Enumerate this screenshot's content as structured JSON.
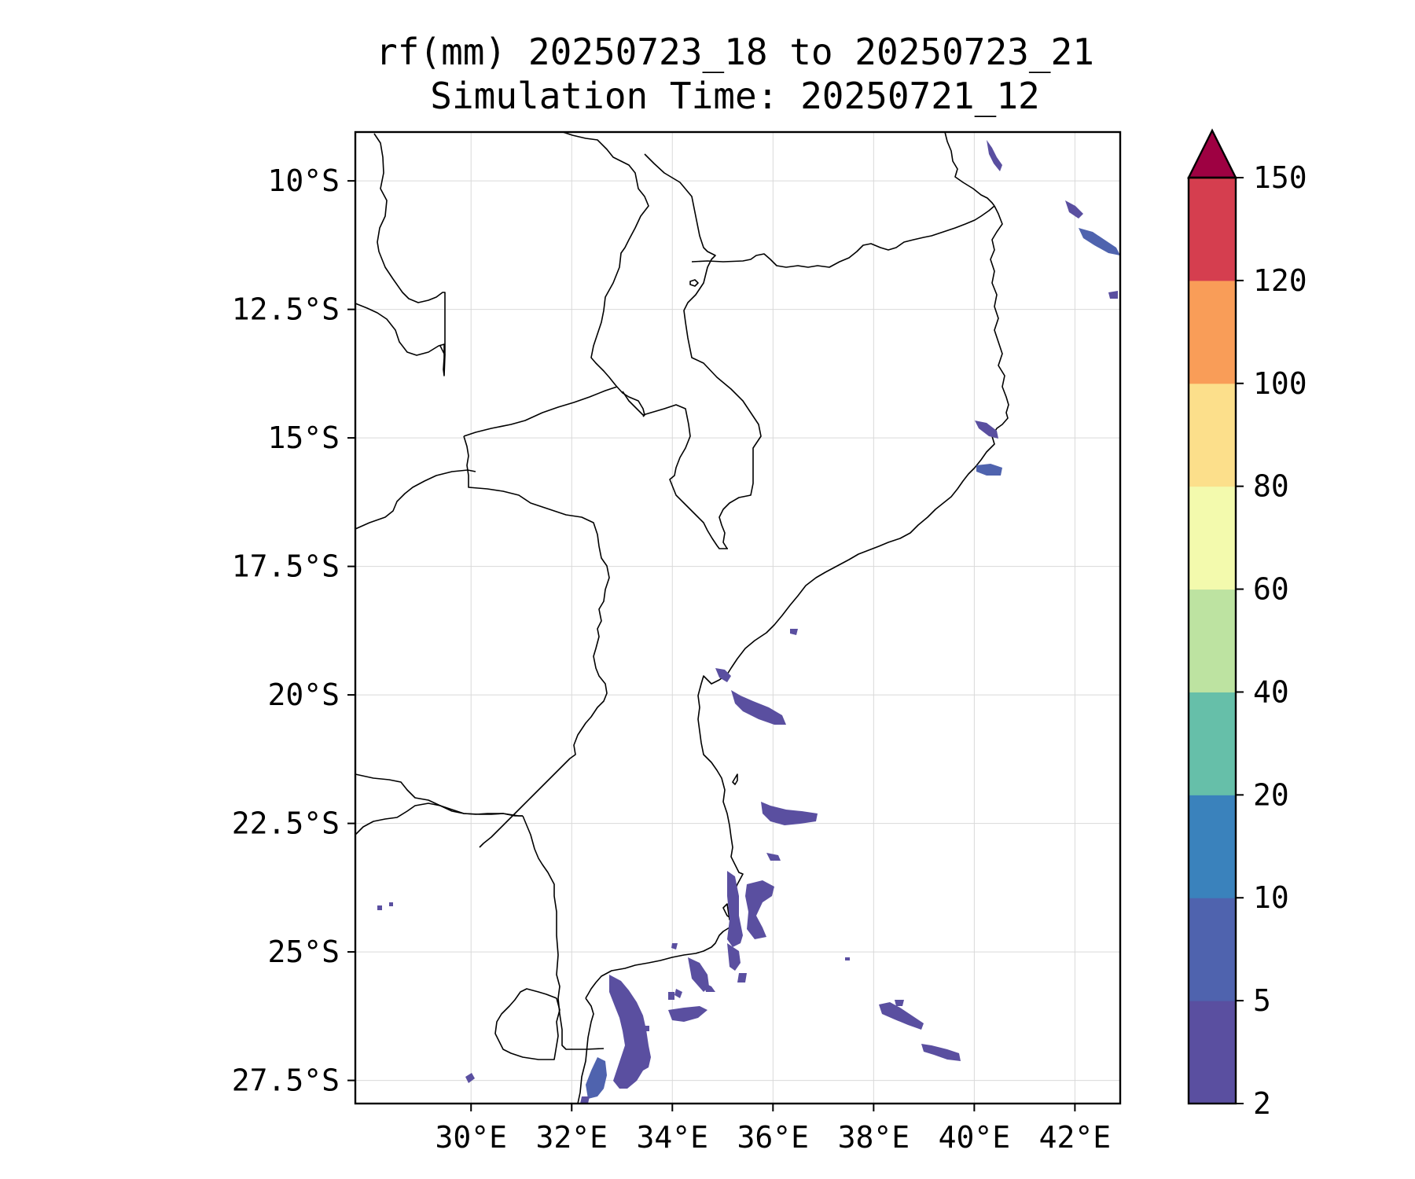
{
  "map": {
    "title_line1": "rf(mm) 20250723_18 to 20250723_21",
    "title_line2": "Simulation Time: 20250721_12",
    "lon_ticks": [
      "30°E",
      "32°E",
      "34°E",
      "36°E",
      "38°E",
      "40°E",
      "42°E"
    ],
    "lat_ticks": [
      "10°S",
      "12.5°S",
      "15°S",
      "17.5°S",
      "20°S",
      "22.5°S",
      "25°S",
      "27.5°S"
    ],
    "lon_values": [
      30,
      32,
      34,
      36,
      38,
      40,
      42
    ],
    "lat_values": [
      -10,
      -12.5,
      -15,
      -17.5,
      -20,
      -22.5,
      -25,
      -27.5
    ],
    "extent": {
      "lon_min": 27.7,
      "lon_max": 42.9,
      "lat_min": -27.95,
      "lat_max": -9.05
    },
    "grid": true,
    "land_color": "#ffffff",
    "border_color": "#000000",
    "rain_color": "#5a53a0"
  },
  "colorbar": {
    "levels": [
      "2",
      "5",
      "10",
      "20",
      "40",
      "60",
      "80",
      "100",
      "120",
      "150"
    ],
    "colors": [
      "#5a4fa0",
      "#4f63ae",
      "#3a82bc",
      "#66bfa9",
      "#bde3a1",
      "#f3faad",
      "#fcdf8b",
      "#f99d58",
      "#d53e4f",
      "#9e0142"
    ],
    "extend": "max"
  }
}
